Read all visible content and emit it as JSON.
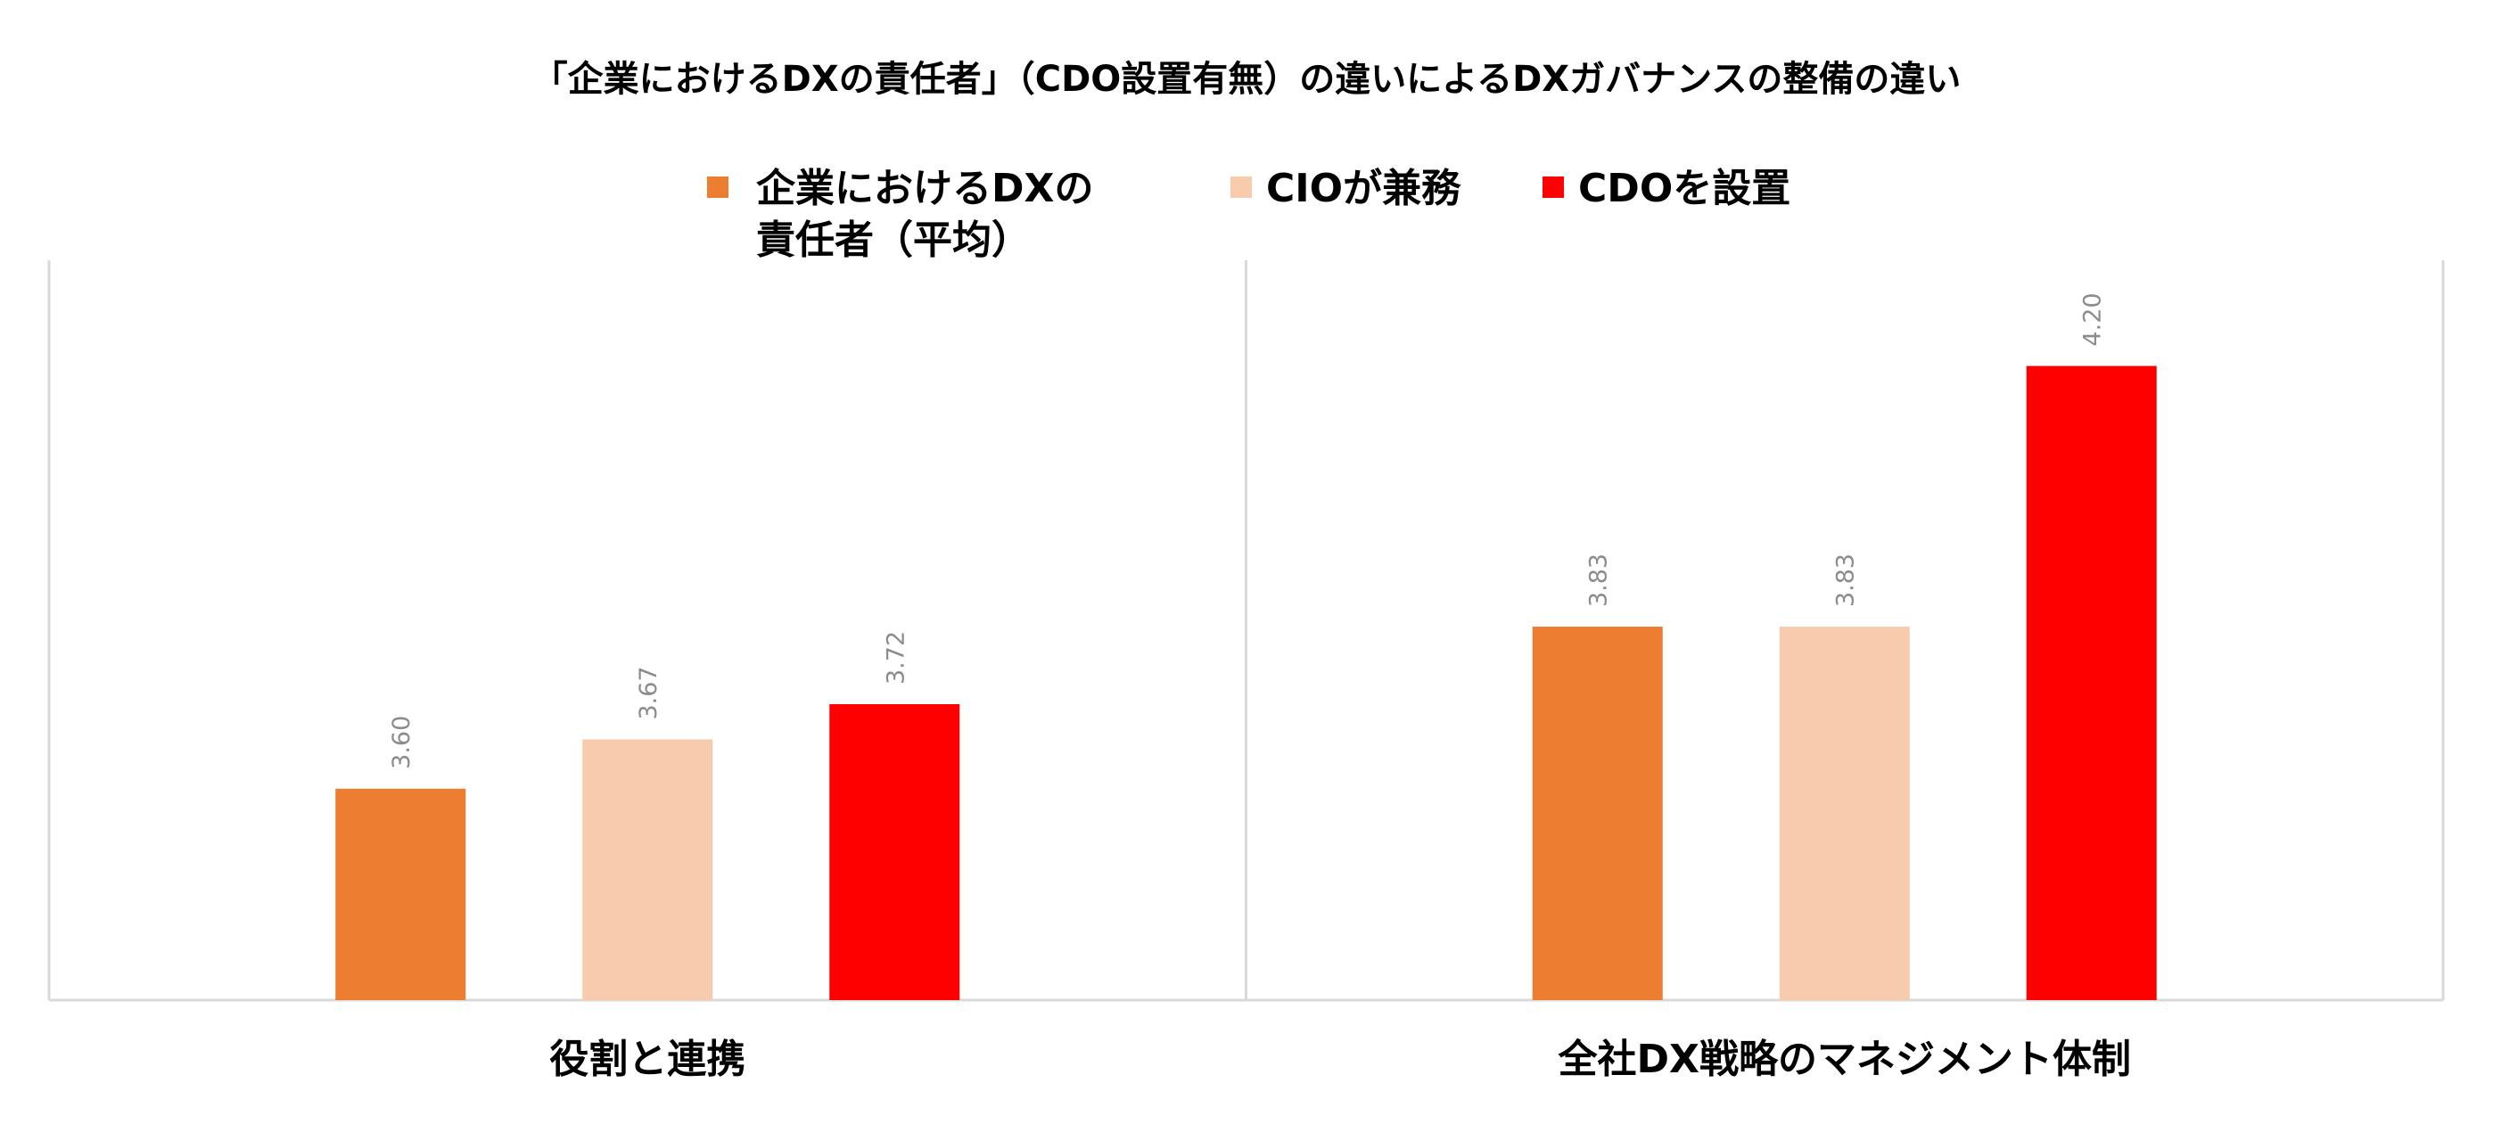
{
  "chart_data": {
    "type": "bar",
    "title": "「企業におけるDXの責任者」（CDO設置有無）の違いによるDXガバナンスの整備の違い",
    "categories": [
      "役割と連携",
      "全社DX戦略のマネジメント体制"
    ],
    "series": [
      {
        "name": "企業におけるDXの責任者（平均）",
        "name_lines": [
          "企業におけるDXの",
          "責任者（平均）"
        ],
        "color": "#ED7D31",
        "values": [
          3.6,
          3.83
        ]
      },
      {
        "name": "CIOが兼務",
        "name_lines": [
          "CIOが兼務"
        ],
        "color": "#F8CBAD",
        "values": [
          3.67,
          3.83
        ]
      },
      {
        "name": "CDOを設置",
        "name_lines": [
          "CDOを設置"
        ],
        "color": "#FF0000",
        "values": [
          3.72,
          4.2
        ]
      }
    ],
    "data_labels": [
      [
        "3.60",
        "3.83"
      ],
      [
        "3.67",
        "3.83"
      ],
      [
        "3.72",
        "4.20"
      ]
    ],
    "ylim": [
      3.3,
      4.35
    ],
    "grid": false,
    "legend_position": "top",
    "colors": {
      "axis": "#D9D9D9",
      "data_label": "#8C8C8C",
      "text": "#000000"
    }
  }
}
